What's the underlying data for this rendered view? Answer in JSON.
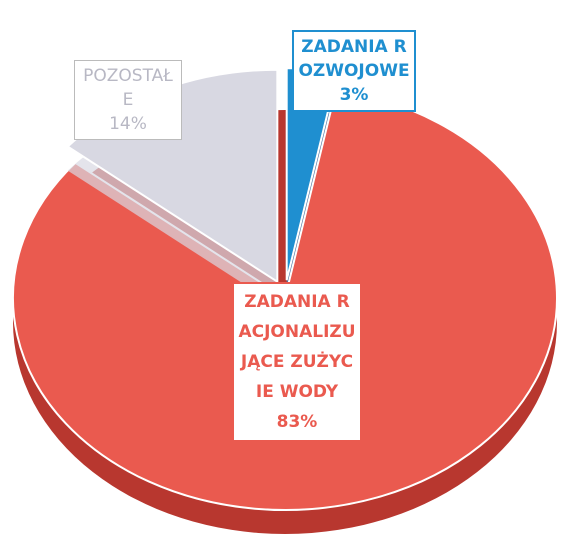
{
  "chart_data": {
    "type": "pie",
    "categories": [
      "ZADANIA ROZWOJOWE",
      "ZADANIA RACJONALIZUJĄCE ZUŻYCIE WODY",
      "POZOSTAŁE"
    ],
    "values": [
      3,
      83,
      14
    ],
    "value_labels": [
      "3%",
      "83%",
      "14%"
    ],
    "colors": [
      "#1f8fd0",
      "#ea5a4f",
      "#d8d8e2"
    ],
    "explode": [
      true,
      false,
      true
    ]
  }
}
